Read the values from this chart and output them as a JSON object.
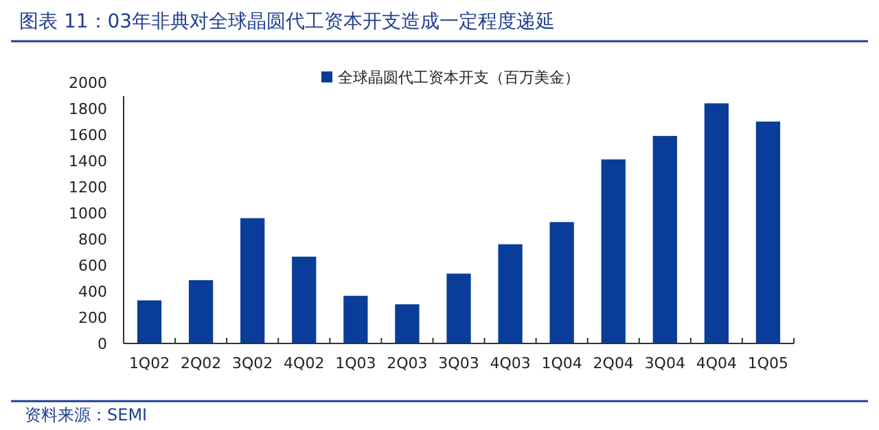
{
  "chart_data": {
    "type": "bar",
    "title": "图表 11：03年非典对全球晶圆代工资本开支造成一定程度递延",
    "categories": [
      "1Q02",
      "2Q02",
      "3Q02",
      "4Q02",
      "1Q03",
      "2Q03",
      "3Q03",
      "4Q03",
      "1Q04",
      "2Q04",
      "3Q04",
      "4Q04",
      "1Q05"
    ],
    "series": [
      {
        "name": "全球晶圆代工资本开支（百万美金）",
        "color": "#0a3d99",
        "values": [
          330,
          485,
          960,
          665,
          365,
          300,
          535,
          760,
          930,
          1410,
          1590,
          1840,
          1700
        ]
      }
    ],
    "ylim": [
      0,
      2000
    ],
    "yticks": [
      0,
      200,
      400,
      600,
      800,
      1000,
      1200,
      1400,
      1600,
      1800,
      2000
    ],
    "grid": false,
    "legend": "top",
    "annotations": [
      "资料来源：SEMI"
    ]
  }
}
